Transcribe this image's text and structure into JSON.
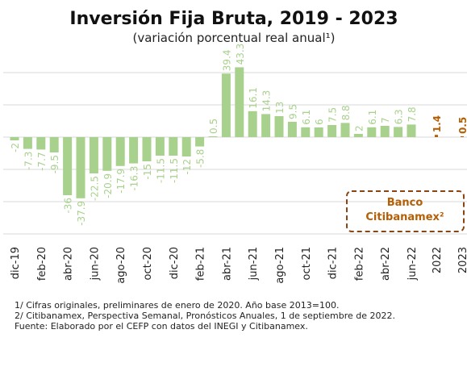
{
  "chart_data": {
    "type": "bar",
    "title": "Inversión Fija Bruta, 2019 - 2023",
    "subtitle": "(variación porcentual real anual¹)",
    "categories": [
      "dic-19",
      null,
      "feb-20",
      null,
      "abr-20",
      null,
      "jun-20",
      null,
      "ago-20",
      null,
      "oct-20",
      null,
      "dic-20",
      null,
      "feb-21",
      null,
      "abr-21",
      null,
      "jun-21",
      null,
      "ago-21",
      null,
      "oct-21",
      null,
      "dic-21",
      null,
      "feb-22",
      null,
      "abr-22",
      null,
      "jun-22",
      "2022",
      "2023"
    ],
    "values": [
      -2.0,
      -7.3,
      -7.7,
      -9.5,
      -36.0,
      -37.9,
      -22.5,
      -20.9,
      -17.9,
      -16.3,
      -15.0,
      -11.5,
      -11.5,
      -12.0,
      -5.8,
      0.5,
      39.4,
      43.3,
      16.1,
      14.3,
      13.0,
      9.5,
      6.1,
      6.0,
      7.5,
      8.8,
      2.0,
      6.1,
      7.0,
      6.3,
      7.8,
      1.4,
      0.5
    ],
    "colors": [
      "#a9d18e",
      "#a9d18e",
      "#a9d18e",
      "#a9d18e",
      "#a9d18e",
      "#a9d18e",
      "#a9d18e",
      "#a9d18e",
      "#a9d18e",
      "#a9d18e",
      "#a9d18e",
      "#a9d18e",
      "#a9d18e",
      "#a9d18e",
      "#a9d18e",
      "#a9d18e",
      "#a9d18e",
      "#a9d18e",
      "#a9d18e",
      "#a9d18e",
      "#a9d18e",
      "#a9d18e",
      "#a9d18e",
      "#a9d18e",
      "#a9d18e",
      "#a9d18e",
      "#a9d18e",
      "#a9d18e",
      "#a9d18e",
      "#a9d18e",
      "#a9d18e",
      "#b45f06",
      "#b45f06"
    ],
    "ylim": [
      -65,
      50
    ],
    "yticks": [
      -60,
      -40,
      -20,
      0,
      20,
      40
    ],
    "grid": true,
    "annotation": [
      "Banco",
      "Citibanamex²"
    ],
    "footnotes": [
      "1/ Cifras originales, preliminares de enero de 2020. Año base 2013=100.",
      "2/ Citibanamex, Perspectiva Semanal, Pronósticos Anuales, 1 de septiembre de 2022.",
      "Fuente: Elaborado por el CEFP con datos del INEGI y Citibanamex."
    ]
  }
}
